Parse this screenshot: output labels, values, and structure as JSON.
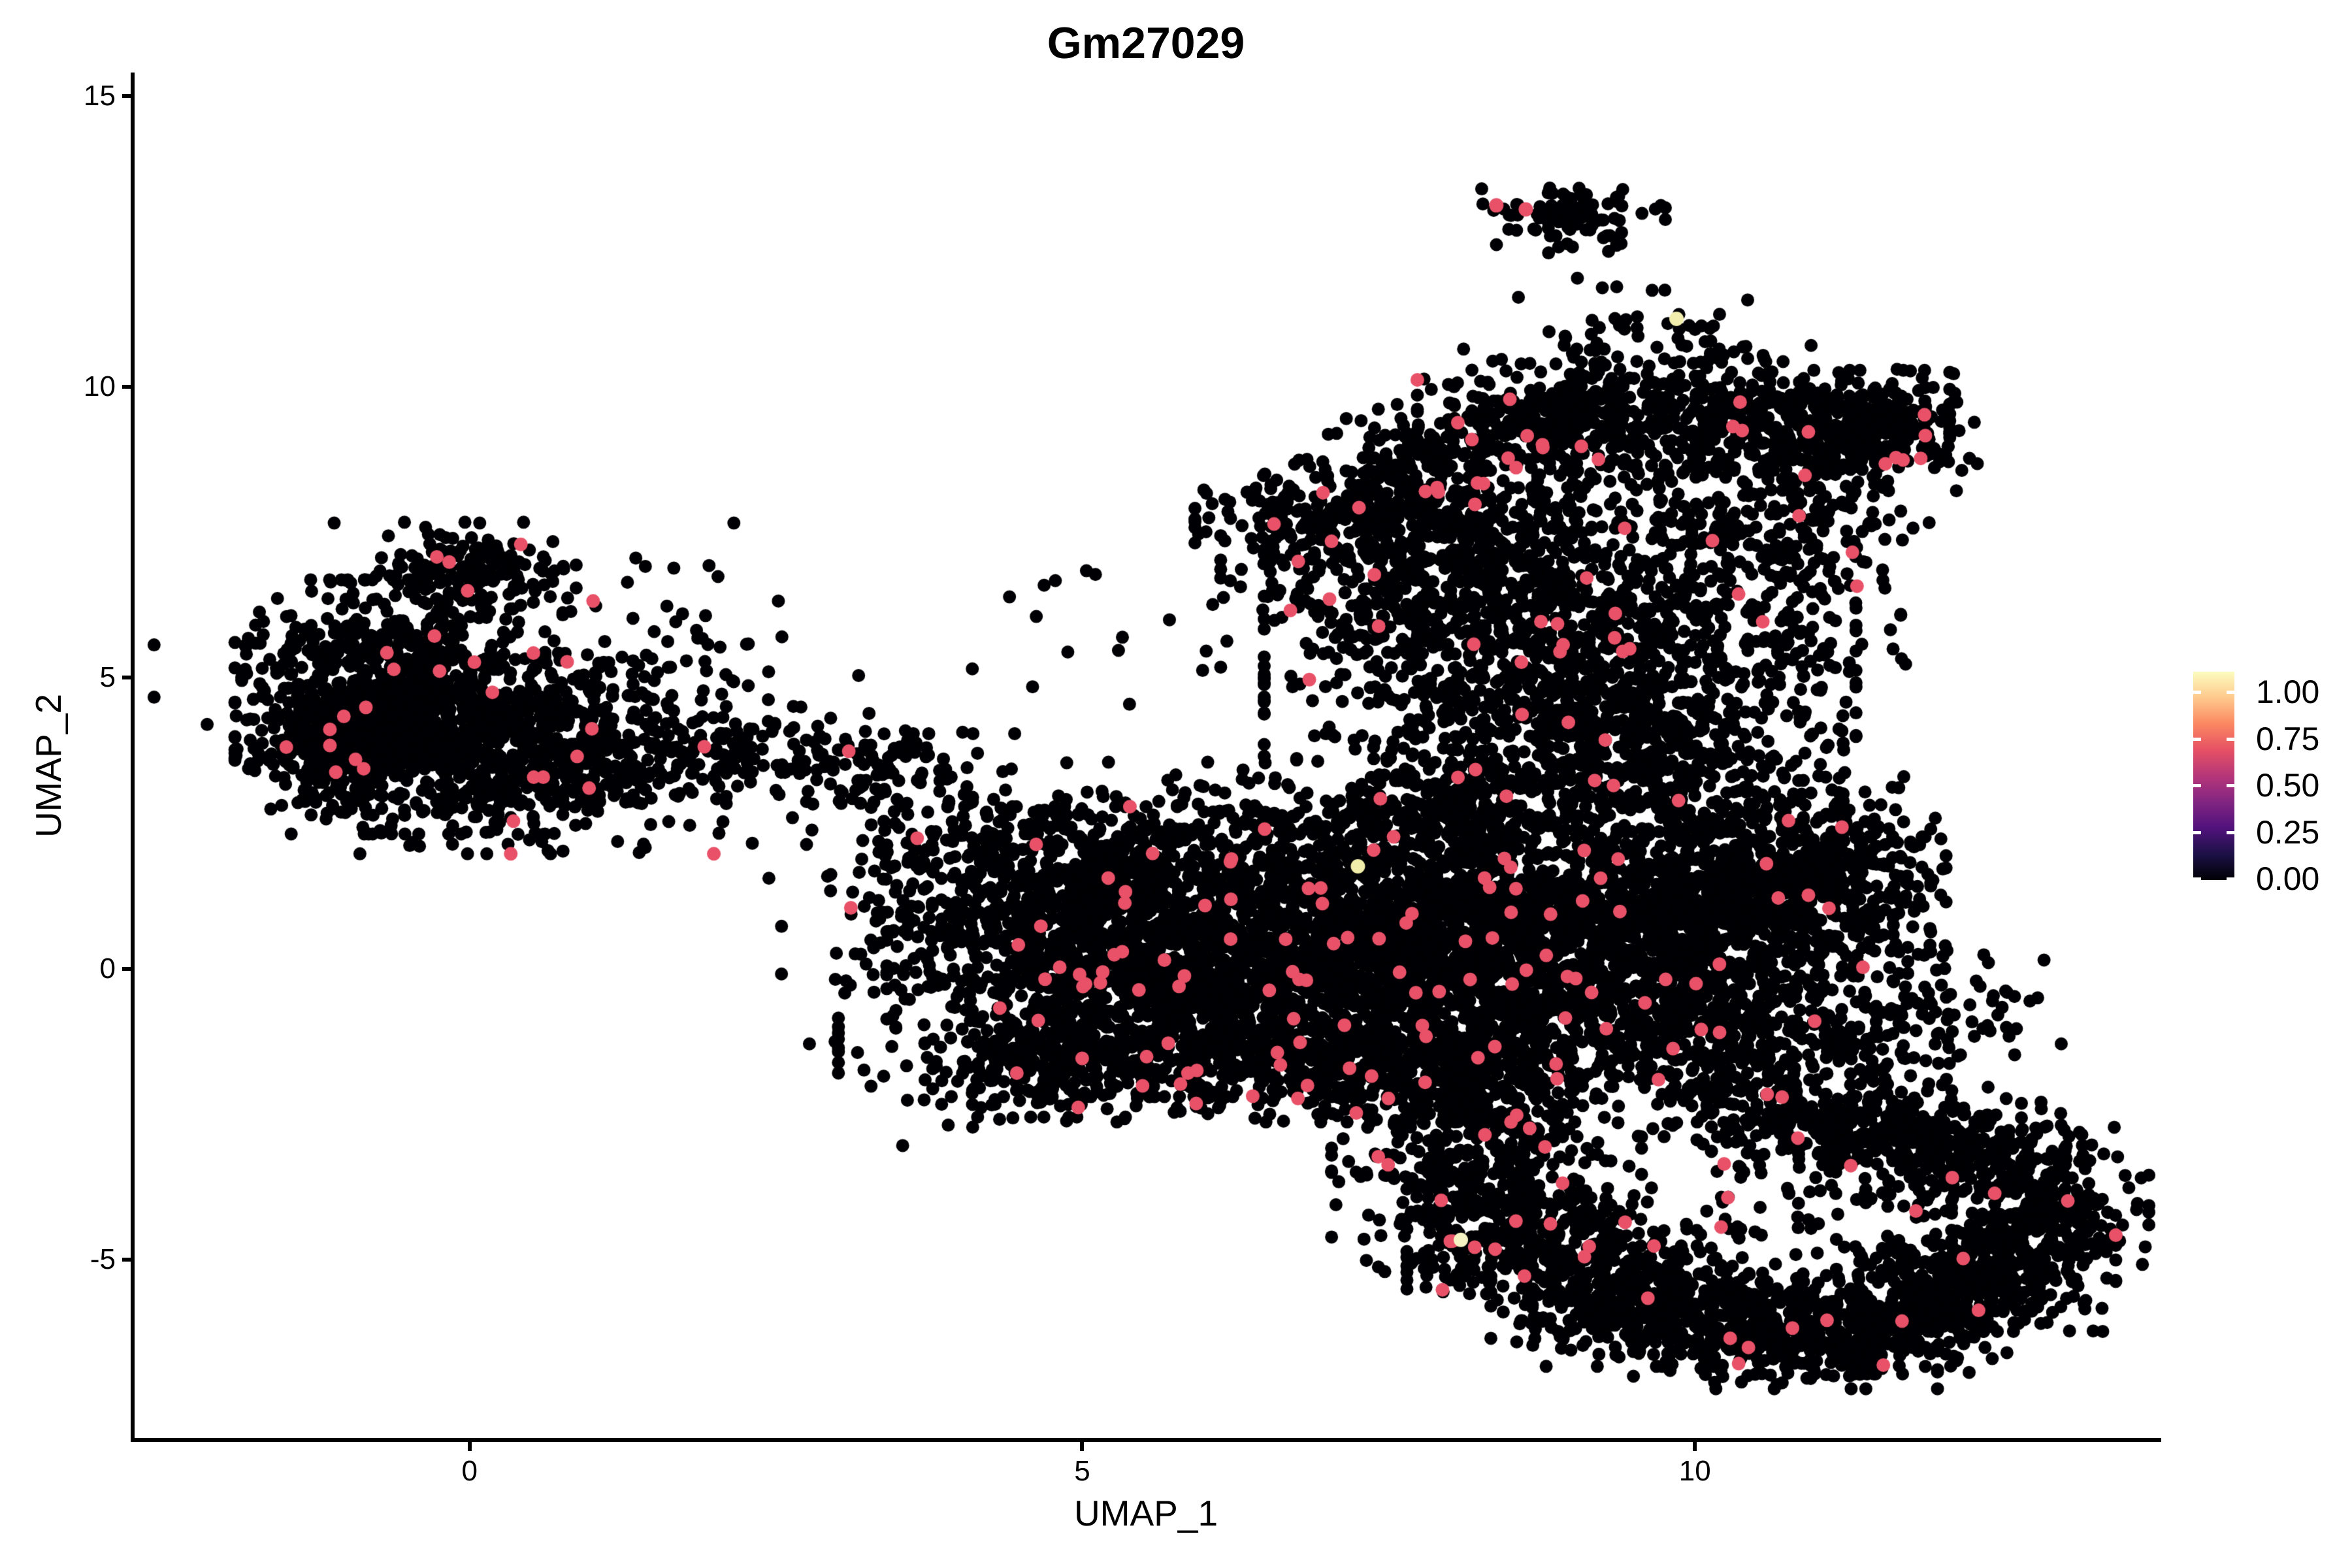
{
  "page": {
    "background": "#ffffff",
    "text_color": "#000000"
  },
  "chart_data": {
    "type": "scatter",
    "title": "Gm27029",
    "xlabel": "UMAP_1",
    "ylabel": "UMAP_2",
    "grid": false,
    "axis_lines": [
      "left",
      "bottom"
    ],
    "xlim": [
      -2.75,
      13.79
    ],
    "ylim": [
      -8.1,
      15.37
    ],
    "x_ticks": [
      {
        "value": 0,
        "label": "0"
      },
      {
        "value": 5,
        "label": "5"
      },
      {
        "value": 10,
        "label": "10"
      }
    ],
    "y_ticks": [
      {
        "value": 15,
        "label": "15"
      },
      {
        "value": 10,
        "label": "10"
      },
      {
        "value": 5,
        "label": "5"
      },
      {
        "value": 0,
        "label": "0"
      },
      {
        "value": -5,
        "label": "-5"
      }
    ],
    "legend": {
      "position": "right",
      "colormap": "magma",
      "ticks": [
        {
          "value": 1.0,
          "label": "1.00"
        },
        {
          "value": 0.75,
          "label": "0.75"
        },
        {
          "value": 0.5,
          "label": "0.50"
        },
        {
          "value": 0.25,
          "label": "0.25"
        },
        {
          "value": 0.0,
          "label": "0.00"
        }
      ],
      "gradient_stops": [
        {
          "offset": 0.0,
          "color": "#000004"
        },
        {
          "offset": 0.125,
          "color": "#1D1147"
        },
        {
          "offset": 0.25,
          "color": "#51127C"
        },
        {
          "offset": 0.375,
          "color": "#822581"
        },
        {
          "offset": 0.5,
          "color": "#B63679"
        },
        {
          "offset": 0.625,
          "color": "#E65164"
        },
        {
          "offset": 0.75,
          "color": "#FB8861"
        },
        {
          "offset": 0.875,
          "color": "#FEC98D"
        },
        {
          "offset": 1.0,
          "color": "#FCFDBF"
        }
      ]
    },
    "points": {
      "total_estimate": 16000,
      "radius_px": 10,
      "base_color": "#000004",
      "expressing_color": "#E85168",
      "expressing_fraction": 0.016,
      "seed": 1234567
    },
    "clusters": [
      {
        "x": -0.65,
        "y": 4.5,
        "sx": 0.55,
        "sy": 0.95,
        "n": 850
      },
      {
        "x": -1.1,
        "y": 3.9,
        "sx": 0.3,
        "sy": 0.5,
        "n": 200
      },
      {
        "x": -0.05,
        "y": 6.8,
        "sx": 0.4,
        "sy": 0.38,
        "n": 170
      },
      {
        "x": 0.6,
        "y": 3.7,
        "sx": 0.65,
        "sy": 0.75,
        "n": 550
      },
      {
        "x": 0.3,
        "y": 4.9,
        "sx": 1.25,
        "sy": 1.2,
        "n": 150
      },
      {
        "x": 2.0,
        "y": 3.8,
        "sx": 0.75,
        "sy": 0.4,
        "n": 130
      },
      {
        "x": 3.2,
        "y": 3.4,
        "sx": 0.45,
        "sy": 0.35,
        "n": 80
      },
      {
        "x": 1.6,
        "y": 5.4,
        "sx": 0.4,
        "sy": 0.4,
        "n": 18
      },
      {
        "x": 3.9,
        "y": 2.2,
        "sx": 0.5,
        "sy": 0.8,
        "n": 150
      },
      {
        "x": 3.4,
        "y": 0.4,
        "sx": 0.4,
        "sy": 0.8,
        "n": 40
      },
      {
        "x": 5.5,
        "y": 6.0,
        "sx": 0.8,
        "sy": 0.8,
        "n": 20
      },
      {
        "x": 3.0,
        "y": 1.0,
        "sx": 0.3,
        "sy": 0.4,
        "n": 12
      },
      {
        "x": 4.9,
        "y": 0.6,
        "sx": 0.65,
        "sy": 0.95,
        "n": 650
      },
      {
        "x": 6.2,
        "y": 0.1,
        "sx": 0.9,
        "sy": 1.0,
        "n": 1100
      },
      {
        "x": 7.7,
        "y": 0.3,
        "sx": 0.9,
        "sy": 1.1,
        "n": 1150
      },
      {
        "x": 8.9,
        "y": 0.7,
        "sx": 0.75,
        "sy": 1.1,
        "n": 800
      },
      {
        "x": 6.0,
        "y": -1.6,
        "sx": 1.3,
        "sy": 0.45,
        "n": 550
      },
      {
        "x": 8.0,
        "y": -1.6,
        "sx": 0.9,
        "sy": 0.45,
        "n": 420
      },
      {
        "x": 4.7,
        "y": -1.4,
        "sx": 0.4,
        "sy": 0.5,
        "n": 170
      },
      {
        "x": 6.1,
        "y": 2.4,
        "sx": 1.1,
        "sy": 0.5,
        "n": 230
      },
      {
        "x": 5.4,
        "y": 1.7,
        "sx": 0.5,
        "sy": 0.5,
        "n": 150
      },
      {
        "x": 7.9,
        "y": 2.8,
        "sx": 0.5,
        "sy": 0.5,
        "n": 220
      },
      {
        "x": 4.2,
        "y": -2.6,
        "sx": 0.3,
        "sy": 0.3,
        "n": 8
      },
      {
        "x": 10.2,
        "y": 1.0,
        "sx": 0.75,
        "sy": 1.0,
        "n": 780
      },
      {
        "x": 10.9,
        "y": 1.6,
        "sx": 0.5,
        "sy": 0.75,
        "n": 380
      },
      {
        "x": 10.1,
        "y": -0.9,
        "sx": 0.6,
        "sy": 0.55,
        "n": 260
      },
      {
        "x": 11.0,
        "y": -1.7,
        "sx": 0.7,
        "sy": 0.4,
        "n": 120
      },
      {
        "x": 11.9,
        "y": -0.8,
        "sx": 0.5,
        "sy": 0.75,
        "n": 90
      },
      {
        "x": 8.9,
        "y": 4.9,
        "sx": 1.05,
        "sy": 1.0,
        "n": 850
      },
      {
        "x": 9.6,
        "y": 3.6,
        "sx": 0.7,
        "sy": 0.6,
        "n": 300
      },
      {
        "x": 8.2,
        "y": 6.8,
        "sx": 0.9,
        "sy": 0.85,
        "n": 650
      },
      {
        "x": 7.3,
        "y": 7.8,
        "sx": 0.6,
        "sy": 0.42,
        "n": 300
      },
      {
        "x": 8.0,
        "y": 8.9,
        "sx": 0.45,
        "sy": 0.4,
        "n": 150
      },
      {
        "x": 9.0,
        "y": 9.5,
        "sx": 0.55,
        "sy": 0.5,
        "n": 380
      },
      {
        "x": 10.7,
        "y": 9.4,
        "sx": 0.6,
        "sy": 0.45,
        "n": 380
      },
      {
        "x": 11.5,
        "y": 9.25,
        "sx": 0.35,
        "sy": 0.45,
        "n": 220
      },
      {
        "x": 10.3,
        "y": 7.4,
        "sx": 0.6,
        "sy": 0.85,
        "n": 260
      },
      {
        "x": 11.15,
        "y": 7.8,
        "sx": 0.35,
        "sy": 0.55,
        "n": 70
      },
      {
        "x": 10.8,
        "y": 5.6,
        "sx": 0.4,
        "sy": 0.7,
        "n": 55
      },
      {
        "x": 9.8,
        "y": 10.8,
        "sx": 0.5,
        "sy": 0.4,
        "n": 55
      },
      {
        "x": 9.0,
        "y": 11.8,
        "sx": 0.3,
        "sy": 0.3,
        "n": 6
      },
      {
        "x": 9.0,
        "y": 12.95,
        "sx": 0.33,
        "sy": 0.27,
        "n": 90
      },
      {
        "x": 8.87,
        "y": 12.42,
        "sx": 0.08,
        "sy": 0.08,
        "n": 2
      },
      {
        "x": 8.3,
        "y": -3.6,
        "sx": 0.55,
        "sy": 0.85,
        "n": 420
      },
      {
        "x": 8.0,
        "y": -2.5,
        "sx": 0.4,
        "sy": 0.3,
        "n": 90
      },
      {
        "x": 8.8,
        "y": -4.9,
        "sx": 0.5,
        "sy": 0.5,
        "n": 280
      },
      {
        "x": 9.6,
        "y": -5.8,
        "sx": 0.55,
        "sy": 0.45,
        "n": 330
      },
      {
        "x": 10.6,
        "y": -6.3,
        "sx": 0.6,
        "sy": 0.4,
        "n": 340
      },
      {
        "x": 11.6,
        "y": -6.0,
        "sx": 0.5,
        "sy": 0.42,
        "n": 300
      },
      {
        "x": 12.4,
        "y": -5.2,
        "sx": 0.45,
        "sy": 0.45,
        "n": 290
      },
      {
        "x": 12.9,
        "y": -4.3,
        "sx": 0.35,
        "sy": 0.45,
        "n": 210
      },
      {
        "x": 12.3,
        "y": -3.3,
        "sx": 0.5,
        "sy": 0.4,
        "n": 240
      },
      {
        "x": 11.4,
        "y": -2.8,
        "sx": 0.55,
        "sy": 0.35,
        "n": 220
      },
      {
        "x": 10.5,
        "y": -2.5,
        "sx": 0.5,
        "sy": 0.3,
        "n": 120
      },
      {
        "x": 10.6,
        "y": -4.3,
        "sx": 0.95,
        "sy": 0.8,
        "n": 90
      }
    ],
    "highlights": [
      {
        "x": 9.85,
        "y": 11.17,
        "color": "#F2EEAE"
      },
      {
        "x": 7.25,
        "y": 1.76,
        "color": "#F0ECA9"
      },
      {
        "x": 8.09,
        "y": -4.66,
        "color": "#F5F3C4"
      },
      {
        "x": 8.38,
        "y": 13.12,
        "color": "#E85168"
      },
      {
        "x": 8.62,
        "y": 13.05,
        "color": "#E85168"
      }
    ]
  }
}
